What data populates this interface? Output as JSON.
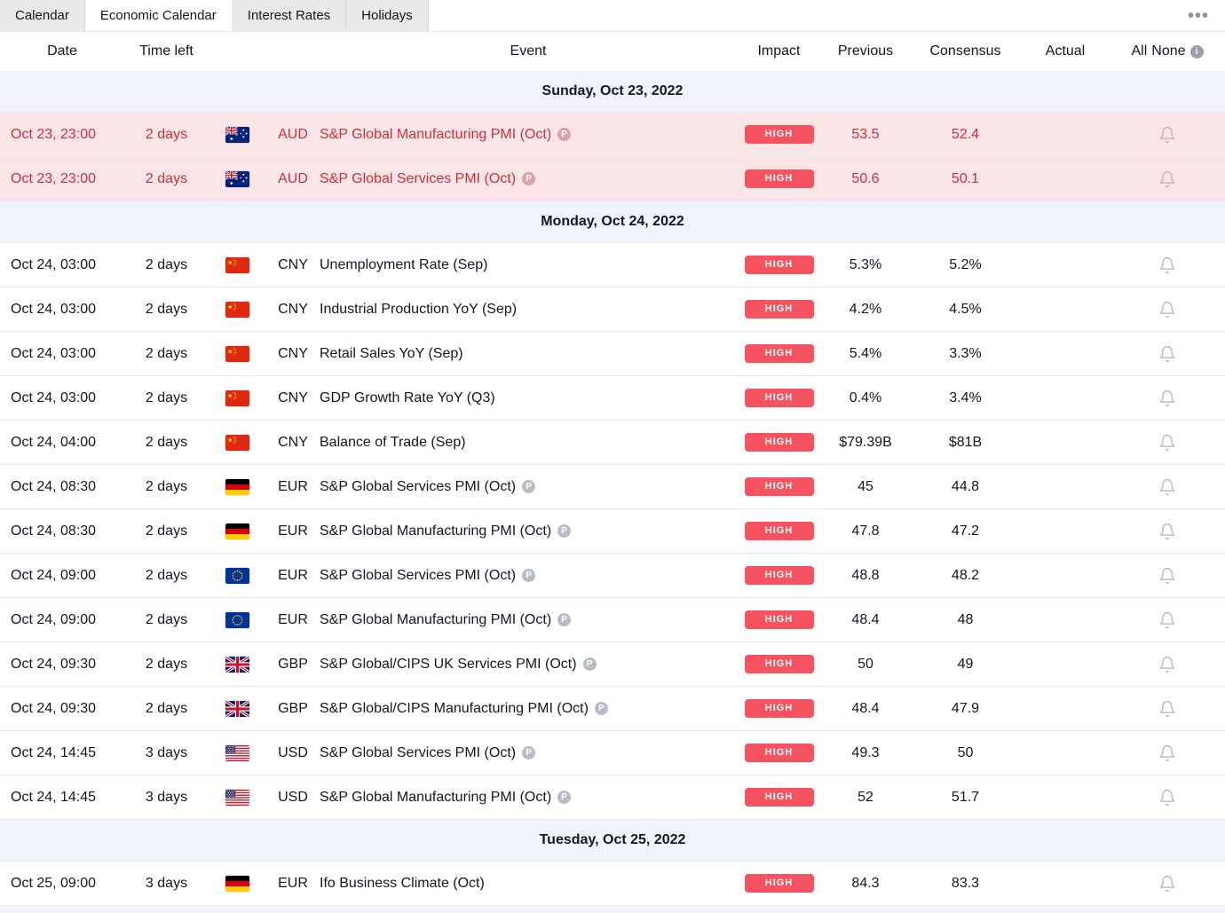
{
  "colors": {
    "text": "#131722",
    "border": "#e8eaef",
    "section_bg": "#f0f3fa",
    "badge_bg": "#f7525f",
    "badge_text": "#ffffff",
    "highlight_bg": "#fbe5e7",
    "highlight_text": "#cc2f3c",
    "bell": "#b0b3bc",
    "tabbar_bg": "#ffffff",
    "tab_inactive_bg": "#e9e9e9",
    "tab_active_bg": "#ffffff",
    "muted_icon": "#b8bcc7"
  },
  "tabs": [
    {
      "label": "Calendar",
      "active": false
    },
    {
      "label": "Economic Calendar",
      "active": true
    },
    {
      "label": "Interest Rates",
      "active": false
    },
    {
      "label": "Holidays",
      "active": false
    }
  ],
  "more_menu_label": "•••",
  "columns": {
    "date": "Date",
    "time_left": "Time left",
    "event": "Event",
    "impact": "Impact",
    "previous": "Previous",
    "consensus": "Consensus",
    "actual": "Actual",
    "all": "All",
    "none": "None"
  },
  "sections": [
    {
      "title": "Sunday, Oct 23, 2022",
      "rows": [
        {
          "date": "Oct 23, 23:00",
          "time_left": "2 days",
          "flag": "au",
          "currency": "AUD",
          "event": "S&P Global Manufacturing PMI (Oct)",
          "preliminary": true,
          "impact": "HIGH",
          "previous": "53.5",
          "consensus": "52.4",
          "actual": "",
          "highlight": true
        },
        {
          "date": "Oct 23, 23:00",
          "time_left": "2 days",
          "flag": "au",
          "currency": "AUD",
          "event": "S&P Global Services PMI (Oct)",
          "preliminary": true,
          "impact": "HIGH",
          "previous": "50.6",
          "consensus": "50.1",
          "actual": "",
          "highlight": true
        }
      ]
    },
    {
      "title": "Monday, Oct 24, 2022",
      "rows": [
        {
          "date": "Oct 24, 03:00",
          "time_left": "2 days",
          "flag": "cn",
          "currency": "CNY",
          "event": "Unemployment Rate (Sep)",
          "preliminary": false,
          "impact": "HIGH",
          "previous": "5.3%",
          "consensus": "5.2%",
          "actual": "",
          "highlight": false
        },
        {
          "date": "Oct 24, 03:00",
          "time_left": "2 days",
          "flag": "cn",
          "currency": "CNY",
          "event": "Industrial Production YoY (Sep)",
          "preliminary": false,
          "impact": "HIGH",
          "previous": "4.2%",
          "consensus": "4.5%",
          "actual": "",
          "highlight": false
        },
        {
          "date": "Oct 24, 03:00",
          "time_left": "2 days",
          "flag": "cn",
          "currency": "CNY",
          "event": "Retail Sales YoY (Sep)",
          "preliminary": false,
          "impact": "HIGH",
          "previous": "5.4%",
          "consensus": "3.3%",
          "actual": "",
          "highlight": false
        },
        {
          "date": "Oct 24, 03:00",
          "time_left": "2 days",
          "flag": "cn",
          "currency": "CNY",
          "event": "GDP Growth Rate YoY (Q3)",
          "preliminary": false,
          "impact": "HIGH",
          "previous": "0.4%",
          "consensus": "3.4%",
          "actual": "",
          "highlight": false
        },
        {
          "date": "Oct 24, 04:00",
          "time_left": "2 days",
          "flag": "cn",
          "currency": "CNY",
          "event": "Balance of Trade (Sep)",
          "preliminary": false,
          "impact": "HIGH",
          "previous": "$79.39B",
          "consensus": "$81B",
          "actual": "",
          "highlight": false
        },
        {
          "date": "Oct 24, 08:30",
          "time_left": "2 days",
          "flag": "de",
          "currency": "EUR",
          "event": "S&P Global Services PMI (Oct)",
          "preliminary": true,
          "impact": "HIGH",
          "previous": "45",
          "consensus": "44.8",
          "actual": "",
          "highlight": false
        },
        {
          "date": "Oct 24, 08:30",
          "time_left": "2 days",
          "flag": "de",
          "currency": "EUR",
          "event": "S&P Global Manufacturing PMI (Oct)",
          "preliminary": true,
          "impact": "HIGH",
          "previous": "47.8",
          "consensus": "47.2",
          "actual": "",
          "highlight": false
        },
        {
          "date": "Oct 24, 09:00",
          "time_left": "2 days",
          "flag": "eu",
          "currency": "EUR",
          "event": "S&P Global Services PMI (Oct)",
          "preliminary": true,
          "impact": "HIGH",
          "previous": "48.8",
          "consensus": "48.2",
          "actual": "",
          "highlight": false
        },
        {
          "date": "Oct 24, 09:00",
          "time_left": "2 days",
          "flag": "eu",
          "currency": "EUR",
          "event": "S&P Global Manufacturing PMI (Oct)",
          "preliminary": true,
          "impact": "HIGH",
          "previous": "48.4",
          "consensus": "48",
          "actual": "",
          "highlight": false
        },
        {
          "date": "Oct 24, 09:30",
          "time_left": "2 days",
          "flag": "gb",
          "currency": "GBP",
          "event": "S&P Global/CIPS UK Services PMI (Oct)",
          "preliminary": true,
          "impact": "HIGH",
          "previous": "50",
          "consensus": "49",
          "actual": "",
          "highlight": false
        },
        {
          "date": "Oct 24, 09:30",
          "time_left": "2 days",
          "flag": "gb",
          "currency": "GBP",
          "event": "S&P Global/CIPS Manufacturing PMI (Oct)",
          "preliminary": true,
          "impact": "HIGH",
          "previous": "48.4",
          "consensus": "47.9",
          "actual": "",
          "highlight": false
        },
        {
          "date": "Oct 24, 14:45",
          "time_left": "3 days",
          "flag": "us",
          "currency": "USD",
          "event": "S&P Global Services PMI (Oct)",
          "preliminary": true,
          "impact": "HIGH",
          "previous": "49.3",
          "consensus": "50",
          "actual": "",
          "highlight": false
        },
        {
          "date": "Oct 24, 14:45",
          "time_left": "3 days",
          "flag": "us",
          "currency": "USD",
          "event": "S&P Global Manufacturing PMI (Oct)",
          "preliminary": true,
          "impact": "HIGH",
          "previous": "52",
          "consensus": "51.7",
          "actual": "",
          "highlight": false
        }
      ]
    },
    {
      "title": "Tuesday, Oct 25, 2022",
      "rows": [
        {
          "date": "Oct 25, 09:00",
          "time_left": "3 days",
          "flag": "de",
          "currency": "EUR",
          "event": "Ifo Business Climate (Oct)",
          "preliminary": false,
          "impact": "HIGH",
          "previous": "84.3",
          "consensus": "83.3",
          "actual": "",
          "highlight": false
        }
      ]
    }
  ]
}
